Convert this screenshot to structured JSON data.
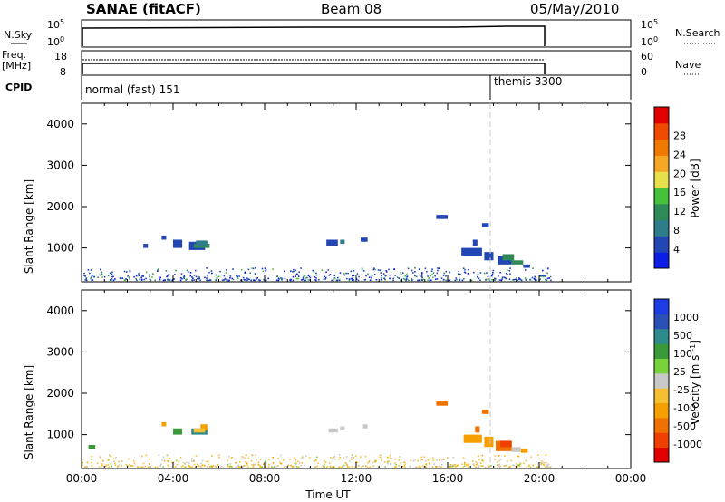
{
  "header": {
    "station": "SANAE (fitACF)",
    "beam": "Beam 08",
    "date": "05/May/2010"
  },
  "strip_labels": {
    "nsky": "N.Sky",
    "freq_top": "Freq.",
    "freq_unit": "[MHz]",
    "cpid": "CPID",
    "nsearch": "N.Search",
    "nave": "Nave"
  },
  "strip_ticks": {
    "nsky_left": [
      "10^5",
      "10^0"
    ],
    "nsky_right": [
      "10^5",
      "10^0"
    ],
    "freq_left": [
      "18",
      "8"
    ],
    "nave_right": [
      "60",
      "0"
    ]
  },
  "cpid": {
    "mode1": "normal (fast) 151",
    "mode2": "themis 3300",
    "switch_time_hours": 18.0
  },
  "colors": {
    "trace": "#000000",
    "dashed_marker": "#c8c8c8",
    "power_scale": [
      "#0a1ee6",
      "#2246b4",
      "#2e7d8a",
      "#2e8b57",
      "#45c23a",
      "#e8e04a",
      "#f5a623",
      "#f07a00",
      "#f04a00",
      "#e00000"
    ],
    "velocity_scale": [
      "#1e3ce6",
      "#2a50b8",
      "#2e8b8b",
      "#3a9a3a",
      "#78d23a",
      "#c8c8c8",
      "#f5c030",
      "#f5a000",
      "#f07000",
      "#f04000",
      "#e00000"
    ]
  },
  "chart_data": [
    {
      "type": "heatmap",
      "name": "power",
      "title": "",
      "ylabel": "Slant Range [km]",
      "xlim": [
        0,
        24
      ],
      "ylim": [
        180,
        4500
      ],
      "yticks": [
        1000,
        2000,
        3000,
        4000
      ],
      "colorbar_label": "Power [dB]",
      "colorbar_ticks": [
        "4",
        "8",
        "12",
        "16",
        "20",
        "24",
        "28"
      ],
      "cells": [
        [
          4.0,
          1000,
          4.4,
          1200,
          1
        ],
        [
          4.7,
          950,
          5.4,
          1150,
          1
        ],
        [
          4.9,
          1000,
          5.6,
          1100,
          3
        ],
        [
          5.0,
          1050,
          5.5,
          1180,
          2
        ],
        [
          10.7,
          1050,
          11.2,
          1200,
          1
        ],
        [
          11.3,
          1100,
          11.5,
          1200,
          2
        ],
        [
          12.2,
          1150,
          12.5,
          1250,
          1
        ],
        [
          15.5,
          1700,
          16.0,
          1800,
          1
        ],
        [
          16.6,
          800,
          17.5,
          1000,
          1
        ],
        [
          17.1,
          1050,
          17.3,
          1200,
          1
        ],
        [
          17.6,
          700,
          18.0,
          900,
          1
        ],
        [
          17.5,
          1500,
          17.8,
          1600,
          1
        ],
        [
          18.2,
          600,
          18.8,
          800,
          1
        ],
        [
          18.4,
          700,
          18.9,
          850,
          3
        ],
        [
          18.8,
          600,
          19.3,
          700,
          3
        ],
        [
          19.3,
          520,
          19.6,
          600,
          1
        ],
        [
          20.0,
          300,
          20.3,
          340,
          1
        ],
        [
          3.5,
          1200,
          3.7,
          1300,
          1
        ],
        [
          2.7,
          1000,
          2.9,
          1100,
          1
        ]
      ],
      "scatter_near_range": {
        "from_h": 0.0,
        "to_h": 20.5,
        "min_km": 200,
        "max_km": 500
      }
    },
    {
      "type": "heatmap",
      "name": "velocity",
      "title": "",
      "xlabel": "Time UT",
      "ylabel": "Slant Range [km]",
      "xlim": [
        0,
        24
      ],
      "ylim": [
        180,
        4500
      ],
      "yticks": [
        1000,
        2000,
        3000,
        4000
      ],
      "xtick_labels": [
        "00:00",
        "04:00",
        "08:00",
        "12:00",
        "16:00",
        "20:00",
        "00:00"
      ],
      "colorbar_label": "Velocity [m s^-1]",
      "colorbar_ticks": [
        "1000",
        "500",
        "100",
        "25",
        "-25",
        "-100",
        "-500",
        "-1000"
      ],
      "cells": [
        [
          4.0,
          1000,
          4.4,
          1150,
          3
        ],
        [
          4.8,
          1000,
          5.5,
          1150,
          2
        ],
        [
          5.2,
          1100,
          5.5,
          1250,
          7
        ],
        [
          4.9,
          1050,
          5.4,
          1150,
          6
        ],
        [
          10.8,
          1050,
          11.2,
          1150,
          5
        ],
        [
          11.3,
          1100,
          11.5,
          1200,
          5
        ],
        [
          12.3,
          1150,
          12.5,
          1250,
          5
        ],
        [
          15.5,
          1700,
          16.0,
          1800,
          8
        ],
        [
          16.7,
          800,
          17.5,
          1000,
          7
        ],
        [
          17.2,
          1050,
          17.4,
          1200,
          8
        ],
        [
          17.6,
          700,
          18.0,
          950,
          7
        ],
        [
          17.5,
          1500,
          17.8,
          1600,
          8
        ],
        [
          18.1,
          600,
          18.8,
          850,
          8
        ],
        [
          18.3,
          700,
          18.8,
          850,
          9
        ],
        [
          18.8,
          580,
          19.2,
          700,
          5
        ],
        [
          19.2,
          560,
          19.5,
          650,
          7
        ],
        [
          0.3,
          650,
          0.6,
          750,
          3
        ],
        [
          3.5,
          1200,
          3.7,
          1300,
          7
        ]
      ],
      "scatter_near_range": {
        "from_h": 0.0,
        "to_h": 20.5,
        "min_km": 200,
        "max_km": 500
      }
    }
  ]
}
